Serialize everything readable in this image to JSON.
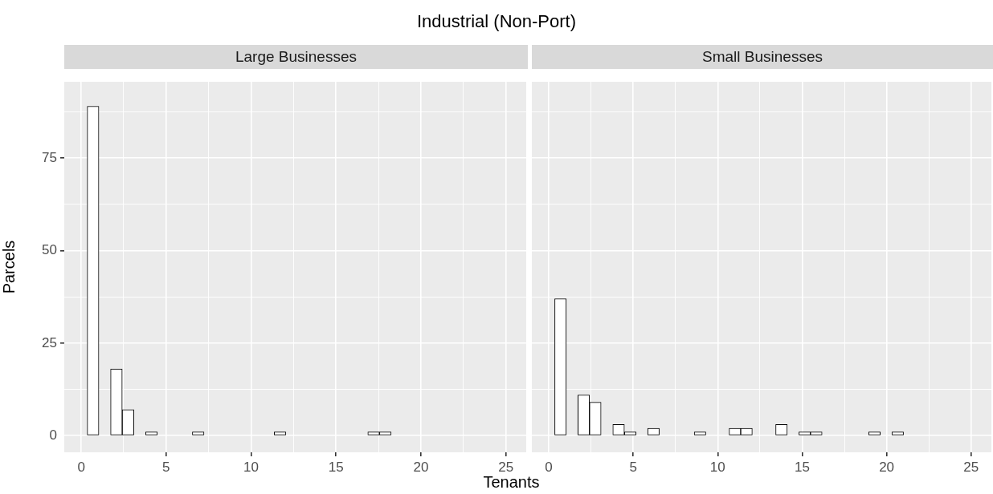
{
  "chart_data": [
    {
      "type": "histogram",
      "title": "Large Businesses",
      "subtitle": "Industrial (Non-Port)",
      "xlabel": "Tenants",
      "ylabel": "Parcels",
      "color": "#ffffff",
      "bins": [
        0.35,
        1.04,
        1.73,
        2.41,
        3.1,
        3.79,
        4.48,
        5.17,
        5.86,
        6.54,
        7.23,
        7.92,
        8.61,
        9.3,
        9.99,
        10.68,
        11.36,
        12.05,
        12.74,
        13.43,
        14.12,
        14.81,
        15.49,
        16.18,
        16.87,
        17.56,
        18.25,
        18.94,
        19.62,
        20.31,
        21.0
      ],
      "values": [
        89,
        0,
        18,
        7,
        0,
        1,
        0,
        0,
        0,
        1,
        0,
        0,
        0,
        0,
        0,
        0,
        1,
        0,
        0,
        0,
        0,
        0,
        0,
        0,
        1,
        1,
        0,
        0,
        0,
        0
      ],
      "xlim": [
        -1,
        26.2
      ],
      "ylim": [
        -4.5,
        95.6
      ],
      "xticks": [
        0,
        {
          "value": 2.5,
          "label": null
        },
        5,
        {
          "value": 7.5,
          "label": null
        },
        10,
        {
          "value": 12.5,
          "label": null
        },
        15,
        {
          "value": 17.5,
          "label": null
        },
        20,
        {
          "value": 22.5,
          "label": null
        },
        25
      ],
      "yticks": [
        0,
        {
          "value": 12.5,
          "label": null
        },
        25,
        {
          "value": 37.5,
          "label": null
        },
        50,
        {
          "value": 62.5,
          "label": null
        },
        75,
        {
          "value": 87.5,
          "label": null
        }
      ],
      "grid": true
    },
    {
      "type": "histogram",
      "title": "Small Businesses",
      "color": "#ffffff",
      "bins": [
        0.35,
        1.04,
        1.73,
        2.41,
        3.1,
        3.79,
        4.48,
        5.17,
        5.86,
        6.54,
        7.23,
        7.92,
        8.61,
        9.3,
        9.99,
        10.68,
        11.36,
        12.05,
        12.74,
        13.43,
        14.12,
        14.81,
        15.49,
        16.18,
        16.87,
        17.56,
        18.25,
        18.94,
        19.62,
        20.31,
        21.0
      ],
      "values": [
        37,
        0,
        11,
        9,
        0,
        3,
        1,
        0,
        2,
        0,
        0,
        0,
        1,
        0,
        0,
        2,
        2,
        0,
        0,
        3,
        0,
        1,
        1,
        0,
        0,
        0,
        0,
        1,
        0,
        1
      ],
      "xlim": [
        -1,
        26.2
      ],
      "ylim": [
        -4.5,
        95.6
      ],
      "xticks": [
        0,
        {
          "value": 2.5,
          "label": null
        },
        5,
        {
          "value": 7.5,
          "label": null
        },
        10,
        {
          "value": 12.5,
          "label": null
        },
        15,
        {
          "value": 17.5,
          "label": null
        },
        20,
        {
          "value": 22.5,
          "label": null
        },
        25
      ],
      "yticks": [
        0,
        {
          "value": 12.5,
          "label": null
        },
        25,
        {
          "value": 37.5,
          "label": null
        },
        50,
        {
          "value": 62.5,
          "label": null
        },
        75,
        {
          "value": 87.5,
          "label": null
        }
      ],
      "grid": true,
      "tick_labels": "x"
    }
  ]
}
